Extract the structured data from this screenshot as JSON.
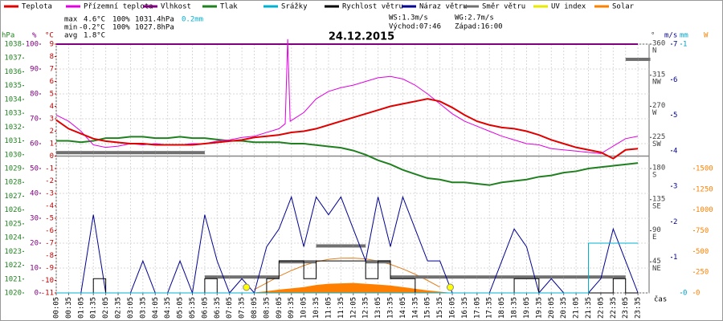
{
  "chart_data": {
    "type": "multi",
    "title": "24.12.2015",
    "x_label": "čas",
    "stats": {
      "max": {
        "label": "max",
        "temp": "4.6°C",
        "humidity": "100%",
        "pressure": "1031.4hPa",
        "rain": "0.2mm"
      },
      "min": {
        "label": "min",
        "temp": "-0.2°C",
        "humidity": "100%",
        "pressure": "1027.8hPa"
      },
      "avg": {
        "label": "avg",
        "temp": "1.8°C"
      },
      "ws": "WS:1.3m/s",
      "wg": "WG:2.7m/s",
      "sunrise": "Východ:07:46",
      "sunset": "Západ:16:00"
    },
    "xlim": [
      5,
      1442
    ],
    "xticks": [
      {
        "value": 5,
        "label": "00:05"
      },
      {
        "value": 35,
        "label": "00:35"
      },
      {
        "value": 65,
        "label": "01:05"
      },
      {
        "value": 95,
        "label": "01:35"
      },
      {
        "value": 125,
        "label": "02:05"
      },
      {
        "value": 155,
        "label": "02:35"
      },
      {
        "value": 185,
        "label": "03:05"
      },
      {
        "value": 215,
        "label": "03:35"
      },
      {
        "value": 245,
        "label": "04:05"
      },
      {
        "value": 275,
        "label": "04:35"
      },
      {
        "value": 305,
        "label": "05:05"
      },
      {
        "value": 335,
        "label": "05:35"
      },
      {
        "value": 365,
        "label": "06:05"
      },
      {
        "value": 395,
        "label": "06:35"
      },
      {
        "value": 425,
        "label": "07:05"
      },
      {
        "value": 455,
        "label": "07:35"
      },
      {
        "value": 485,
        "label": "08:05"
      },
      {
        "value": 515,
        "label": "08:35"
      },
      {
        "value": 545,
        "label": "09:05"
      },
      {
        "value": 575,
        "label": "09:35"
      },
      {
        "value": 605,
        "label": "10:05"
      },
      {
        "value": 635,
        "label": "10:35"
      },
      {
        "value": 665,
        "label": "11:05"
      },
      {
        "value": 695,
        "label": "11:35"
      },
      {
        "value": 725,
        "label": "12:05"
      },
      {
        "value": 755,
        "label": "12:35"
      },
      {
        "value": 785,
        "label": "13:05"
      },
      {
        "value": 815,
        "label": "13:35"
      },
      {
        "value": 845,
        "label": "14:05"
      },
      {
        "value": 875,
        "label": "14:35"
      },
      {
        "value": 905,
        "label": "15:05"
      },
      {
        "value": 935,
        "label": "15:35"
      },
      {
        "value": 965,
        "label": "16:05"
      },
      {
        "value": 995,
        "label": "16:35"
      },
      {
        "value": 1025,
        "label": "17:05"
      },
      {
        "value": 1055,
        "label": "17:35"
      },
      {
        "value": 1085,
        "label": "18:05"
      },
      {
        "value": 1115,
        "label": "18:35"
      },
      {
        "value": 1145,
        "label": "19:05"
      },
      {
        "value": 1175,
        "label": "19:35"
      },
      {
        "value": 1205,
        "label": "20:05"
      },
      {
        "value": 1235,
        "label": "20:35"
      },
      {
        "value": 1265,
        "label": "21:05"
      },
      {
        "value": 1295,
        "label": "21:35"
      },
      {
        "value": 1325,
        "label": "22:05"
      },
      {
        "value": 1355,
        "label": "22:35"
      },
      {
        "value": 1385,
        "label": "23:05"
      },
      {
        "value": 1415,
        "label": "23:35"
      }
    ],
    "x": [
      5,
      35,
      65,
      95,
      125,
      155,
      185,
      215,
      245,
      275,
      305,
      335,
      365,
      395,
      425,
      455,
      485,
      515,
      545,
      575,
      605,
      635,
      665,
      695,
      725,
      755,
      785,
      815,
      845,
      875,
      905,
      935,
      965,
      995,
      1025,
      1055,
      1085,
      1115,
      1145,
      1175,
      1205,
      1235,
      1265,
      1295,
      1325,
      1355,
      1385,
      1415
    ],
    "grid": true,
    "axes": {
      "pressure": {
        "unit": "hPa",
        "color": "#208020",
        "lim": [
          1020,
          1038
        ],
        "ticks": [
          1020,
          1021,
          1022,
          1023,
          1024,
          1025,
          1026,
          1027,
          1028,
          1029,
          1030,
          1031,
          1032,
          1033,
          1034,
          1035,
          1036,
          1037,
          1038
        ]
      },
      "humidity": {
        "unit": "%",
        "color": "#800080",
        "lim": [
          0,
          100
        ],
        "ticks": [
          0,
          10,
          20,
          30,
          40,
          50,
          60,
          70,
          80,
          90,
          100
        ]
      },
      "temp": {
        "unit": "°C",
        "color": "#c00000",
        "lim": [
          -11,
          9
        ],
        "ticks": [
          -11,
          -10,
          -9,
          -8,
          -7,
          -6,
          -5,
          -4,
          -3,
          -2,
          -1,
          0,
          1,
          2,
          3,
          4,
          5,
          6,
          7,
          8,
          9
        ]
      },
      "direction": {
        "unit": "°",
        "color": "#404040",
        "lim": [
          0,
          360
        ],
        "compass": true,
        "ticks": [
          {
            "value": 45,
            "label": "NE"
          },
          {
            "value": 90,
            "label": "E"
          },
          {
            "value": 135,
            "label": "SE"
          },
          {
            "value": 180,
            "label": "S"
          },
          {
            "value": 225,
            "label": "SW"
          },
          {
            "value": 270,
            "label": "W"
          },
          {
            "value": 315,
            "label": "NW"
          },
          {
            "value": 360,
            "label": "N"
          }
        ]
      },
      "wind": {
        "unit": "m/s",
        "color": "#000090",
        "lim": [
          0,
          7
        ],
        "ticks": [
          1,
          2,
          3,
          4,
          5,
          6,
          7
        ]
      },
      "rain": {
        "unit": "mm",
        "color": "#00a0c8",
        "lim": [
          0,
          1
        ],
        "ticks": [
          0,
          1
        ]
      },
      "solar": {
        "unit": "W",
        "color": "#ff8000",
        "lim": [
          0,
          3000
        ],
        "ticks": [
          0,
          250,
          500,
          750,
          1000,
          1250,
          1500
        ]
      }
    },
    "series": [
      {
        "name": "Teplota",
        "color": "#e00000",
        "axis": "temp",
        "kind": "line",
        "width": 2,
        "values": [
          2.9,
          2.2,
          1.8,
          1.4,
          1.2,
          1.1,
          1.0,
          1.0,
          0.9,
          0.9,
          0.9,
          0.9,
          1.0,
          1.1,
          1.2,
          1.3,
          1.5,
          1.6,
          1.7,
          1.9,
          2.0,
          2.2,
          2.5,
          2.8,
          3.1,
          3.4,
          3.7,
          4.0,
          4.2,
          4.4,
          4.6,
          4.4,
          3.9,
          3.3,
          2.8,
          2.5,
          2.3,
          2.2,
          2.0,
          1.7,
          1.3,
          1.0,
          0.7,
          0.5,
          0.3,
          -0.2,
          0.5,
          0.6
        ]
      },
      {
        "name": "Přízemní teplota",
        "color": "#e000e0",
        "axis": "temp",
        "kind": "line",
        "width": 1,
        "x": [
          5,
          35,
          65,
          95,
          125,
          155,
          185,
          215,
          245,
          275,
          305,
          335,
          365,
          395,
          425,
          455,
          485,
          515,
          545,
          560,
          566,
          572,
          605,
          635,
          665,
          695,
          725,
          755,
          785,
          815,
          845,
          875,
          905,
          935,
          965,
          995,
          1025,
          1055,
          1085,
          1115,
          1145,
          1175,
          1205,
          1235,
          1265,
          1295,
          1325,
          1355,
          1385,
          1415
        ],
        "values": [
          3.3,
          2.8,
          2.0,
          0.9,
          0.7,
          0.8,
          1.0,
          0.9,
          1.0,
          0.9,
          0.9,
          1.0,
          1.0,
          1.2,
          1.3,
          1.5,
          1.6,
          1.9,
          2.2,
          2.6,
          9.4,
          2.8,
          3.5,
          4.6,
          5.2,
          5.5,
          5.7,
          6.0,
          6.3,
          6.4,
          6.2,
          5.7,
          5.0,
          4.2,
          3.4,
          2.8,
          2.4,
          2.0,
          1.6,
          1.3,
          1.0,
          0.9,
          0.6,
          0.5,
          0.4,
          0.3,
          0.2,
          0.8,
          1.4,
          1.6
        ]
      },
      {
        "name": "Vlhkost",
        "color": "#800080",
        "axis": "humidity",
        "kind": "line",
        "width": 2,
        "x": [
          5,
          1415
        ],
        "values": [
          100,
          100
        ]
      },
      {
        "name": "Tlak",
        "color": "#208020",
        "axis": "pressure",
        "kind": "line",
        "width": 2,
        "values": [
          1031.0,
          1031.0,
          1030.9,
          1031.0,
          1031.2,
          1031.2,
          1031.3,
          1031.3,
          1031.2,
          1031.2,
          1031.3,
          1031.2,
          1031.2,
          1031.1,
          1031.0,
          1031.0,
          1030.9,
          1030.9,
          1030.9,
          1030.8,
          1030.8,
          1030.7,
          1030.6,
          1030.5,
          1030.3,
          1030.0,
          1029.6,
          1029.3,
          1028.9,
          1028.6,
          1028.3,
          1028.2,
          1028.0,
          1028.0,
          1027.9,
          1027.8,
          1028.0,
          1028.1,
          1028.2,
          1028.4,
          1028.5,
          1028.7,
          1028.8,
          1029.0,
          1029.1,
          1029.2,
          1029.3,
          1029.4
        ]
      },
      {
        "name": "Srážky",
        "color": "#00b0d0",
        "axis": "rain",
        "kind": "step",
        "width": 1,
        "values": [
          0,
          0,
          0,
          0,
          0,
          0,
          0,
          0,
          0,
          0,
          0,
          0,
          0,
          0,
          0,
          0,
          0,
          0,
          0,
          0,
          0,
          0,
          0,
          0,
          0,
          0,
          0,
          0,
          0,
          0,
          0,
          0,
          0,
          0,
          0,
          0,
          0,
          0,
          0,
          0,
          0,
          0,
          0,
          0.2,
          0.2,
          0.2,
          0.2,
          0.2
        ]
      },
      {
        "name": "Rychlost větru",
        "color": "#000000",
        "axis": "wind",
        "kind": "step",
        "width": 1,
        "values": [
          0,
          0,
          0,
          0.4,
          0,
          0,
          0,
          0,
          0,
          0,
          0,
          0,
          0.4,
          0,
          0,
          0,
          0,
          0.4,
          0.9,
          0.9,
          0.4,
          0.9,
          0.9,
          0.9,
          0.9,
          0.4,
          0.9,
          0.4,
          0.4,
          0,
          0,
          0,
          0,
          0,
          0,
          0,
          0,
          0.4,
          0.4,
          0,
          0,
          0,
          0,
          0,
          0,
          0.4,
          0,
          0
        ]
      },
      {
        "name": "Náraz větru",
        "color": "#000090",
        "axis": "wind",
        "kind": "line",
        "width": 1,
        "values": [
          0,
          0,
          0,
          2.2,
          0,
          0,
          0,
          0.9,
          0,
          0,
          0.9,
          0,
          2.2,
          0.9,
          0,
          0.4,
          0,
          1.3,
          1.8,
          2.7,
          1.3,
          2.7,
          2.2,
          2.7,
          1.8,
          0.9,
          2.7,
          1.3,
          2.7,
          1.8,
          0.9,
          0.9,
          0,
          0,
          0,
          0,
          0.9,
          1.8,
          1.3,
          0,
          0.4,
          0,
          0,
          0,
          0.4,
          1.8,
          0.9,
          0
        ]
      },
      {
        "name": "Směr větru",
        "color": "#707070",
        "axis": "direction",
        "kind": "segments",
        "width": 4,
        "values": [
          203,
          203,
          203,
          203,
          203,
          203,
          203,
          203,
          203,
          203,
          203,
          203,
          23,
          23,
          23,
          23,
          23,
          23,
          45,
          45,
          45,
          68,
          68,
          68,
          68,
          45,
          45,
          23,
          23,
          23,
          23,
          23,
          23,
          23,
          23,
          23,
          23,
          23,
          23,
          23,
          23,
          23,
          23,
          23,
          23,
          23,
          338,
          338
        ]
      },
      {
        "name": "UV index",
        "color": "#e8e800"
      },
      {
        "name": "Solar",
        "color": "#ff8000",
        "axis": "solar",
        "kind": "area",
        "values": [
          0,
          0,
          0,
          0,
          0,
          0,
          0,
          0,
          0,
          0,
          0,
          0,
          0,
          0,
          0,
          0,
          5,
          20,
          40,
          55,
          70,
          95,
          110,
          115,
          120,
          110,
          100,
          90,
          70,
          50,
          30,
          15,
          0,
          0,
          0,
          0,
          0,
          0,
          0,
          0,
          0,
          0,
          0,
          0,
          0,
          0,
          0,
          0
        ]
      },
      {
        "color": "#e08020",
        "axis": "solar",
        "kind": "line",
        "width": 1,
        "values": [
          null,
          null,
          null,
          null,
          null,
          null,
          null,
          null,
          null,
          null,
          null,
          null,
          null,
          null,
          null,
          null,
          40,
          120,
          200,
          270,
          330,
          375,
          405,
          418,
          420,
          410,
          385,
          345,
          290,
          225,
          150,
          70,
          null,
          null,
          null,
          null,
          null,
          null,
          null,
          null,
          null,
          null,
          null,
          null,
          null,
          null,
          null,
          null
        ]
      }
    ],
    "sun_marks": {
      "color": "#ffff00",
      "x": [
        466,
        960
      ]
    }
  }
}
